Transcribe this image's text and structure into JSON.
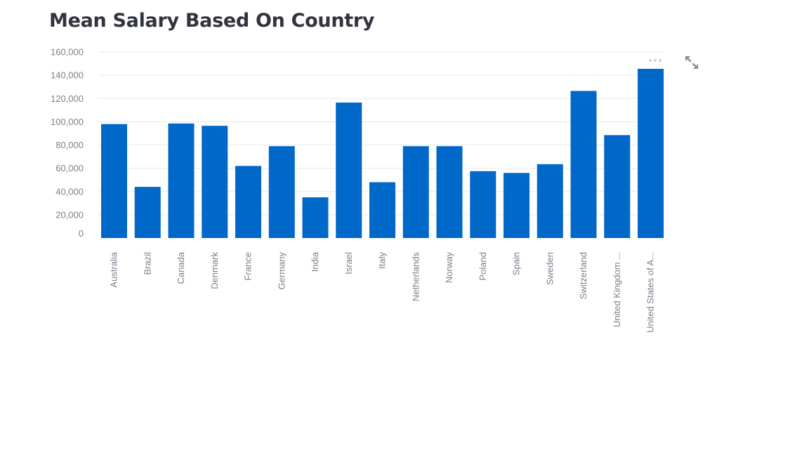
{
  "page": {
    "title": "Mean Salary Based On Country"
  },
  "toolbar": {
    "menu_icon": "more-horizontal-icon",
    "fullscreen_icon": "expand-icon"
  },
  "chart_data": {
    "type": "bar",
    "title": "Mean Salary Based On Country",
    "xlabel": "",
    "ylabel": "",
    "categories": [
      "Australia",
      "Brazil",
      "Canada",
      "Denmark",
      "France",
      "Germany",
      "India",
      "Israel",
      "Italy",
      "Netherlands",
      "Norway",
      "Poland",
      "Spain",
      "Sweden",
      "Switzerland",
      "United Kingdom ...",
      "United States of A..."
    ],
    "values": [
      98000,
      44000,
      98500,
      96500,
      62000,
      79000,
      35000,
      116500,
      48000,
      79000,
      79000,
      57500,
      56000,
      63500,
      126500,
      88500,
      145500
    ],
    "ylim": [
      0,
      160000
    ],
    "yticks": [
      0,
      20000,
      40000,
      60000,
      80000,
      100000,
      120000,
      140000,
      160000
    ],
    "ytick_labels": [
      "0",
      "20,000",
      "40,000",
      "60,000",
      "80,000",
      "100,000",
      "120,000",
      "140,000",
      "160,000"
    ],
    "grid": true,
    "color": "#0068c9",
    "legend": "none"
  }
}
